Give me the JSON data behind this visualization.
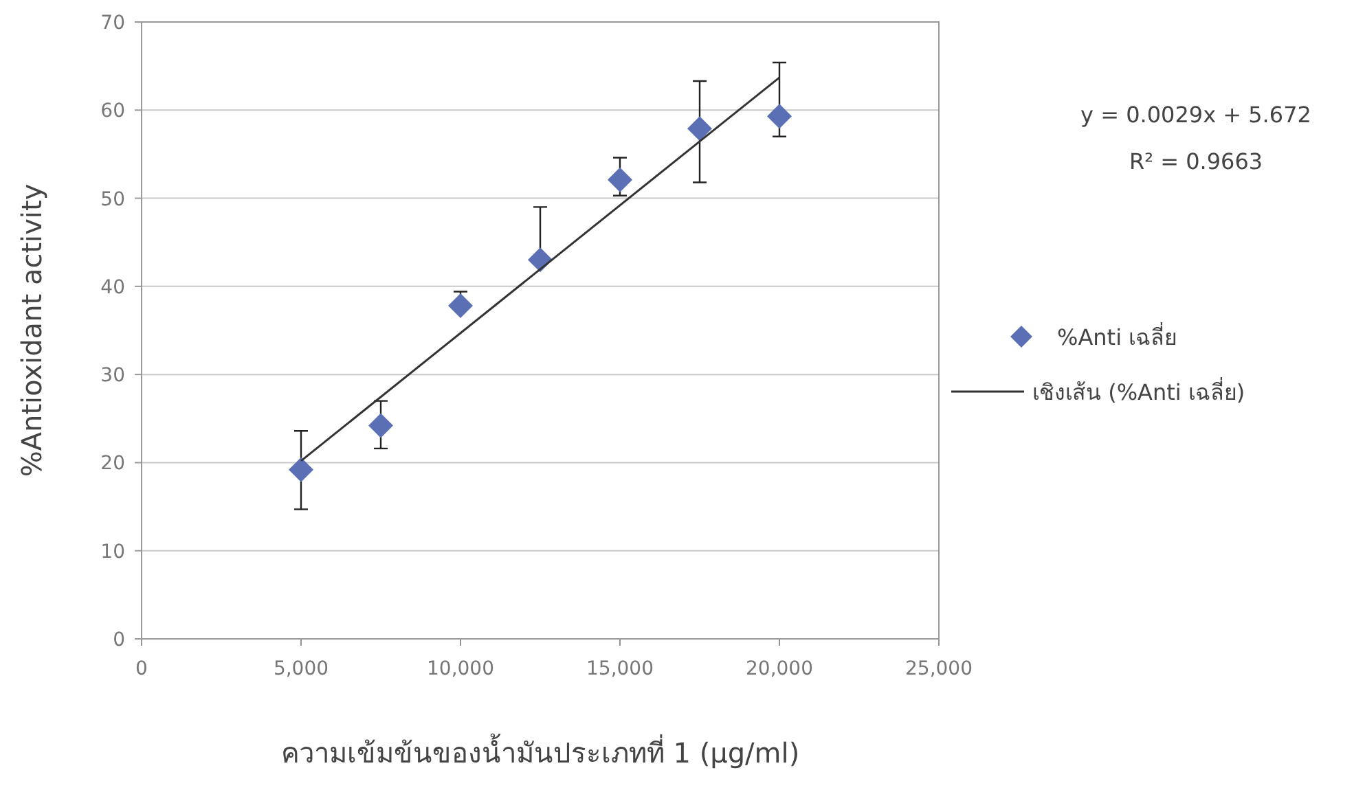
{
  "chart_data": {
    "type": "scatter",
    "xlabel": "ความเข้มข้นของน้ำมันประเภทที่ 1 (µg/ml)",
    "ylabel": "%Antioxidant activity",
    "xlim": [
      0,
      25000
    ],
    "ylim": [
      0,
      70
    ],
    "xticks": [
      0,
      {
        "value": 5000,
        "label": "5,000"
      },
      {
        "value": 10000,
        "label": "10,000"
      },
      {
        "value": 15000,
        "label": "15,000"
      },
      {
        "value": 20000,
        "label": "20,000"
      },
      {
        "value": 25000,
        "label": "25,000"
      }
    ],
    "yticks": [
      0,
      10,
      20,
      30,
      40,
      50,
      60,
      70
    ],
    "grid": "y",
    "legend": "right",
    "marker": "diamond",
    "annotations": [
      "y = 0.0029x + 5.672",
      "R² = 0.9663"
    ],
    "series": [
      {
        "name": "%Anti เฉลี่ย",
        "color": "#5b6fb5",
        "x": [
          5000,
          7500,
          10000,
          12500,
          15000,
          17500,
          20000
        ],
        "values": [
          19.2,
          24.2,
          37.8,
          43.0,
          52.1,
          57.9,
          59.3
        ],
        "errors": [
          [
            14.7,
            23.6
          ],
          [
            21.6,
            27.0
          ],
          [
            37.8,
            39.4
          ],
          [
            43.0,
            49.0
          ],
          [
            50.3,
            54.6
          ],
          [
            51.8,
            63.3
          ],
          [
            57.0,
            65.4
          ]
        ]
      },
      {
        "name": "เชิงเส้น (%Anti เฉลี่ย)",
        "type": "line",
        "color": "#333333",
        "x": [
          5000,
          20000
        ],
        "values": [
          20.2,
          63.7
        ],
        "marker": "none",
        "line_style": "solid"
      }
    ]
  }
}
